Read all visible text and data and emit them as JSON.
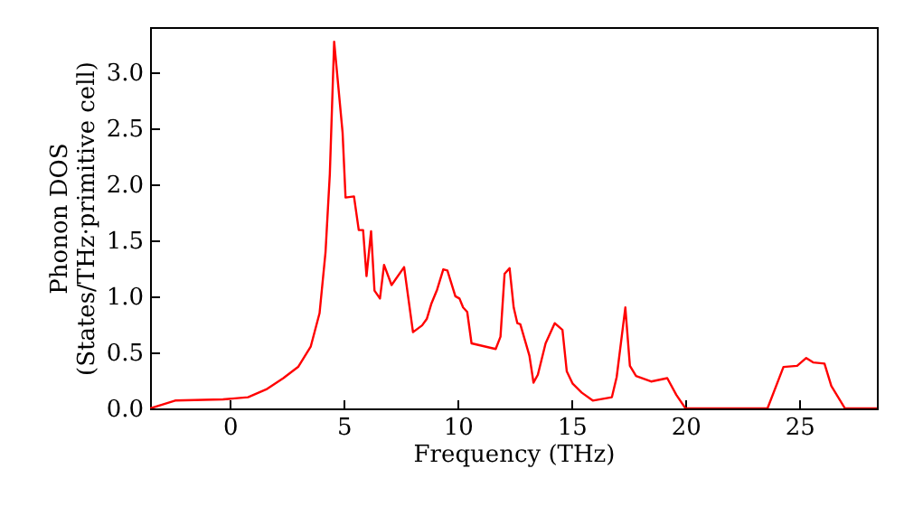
{
  "chart_data": {
    "type": "line",
    "xlabel": "Frequency (THz)",
    "ylabel": "Phonon DOS\n(States/THz·primitive cell)",
    "xlim": [
      -3.5,
      28.4
    ],
    "ylim": [
      0,
      3.4
    ],
    "xticks": [
      0,
      5,
      10,
      15,
      20,
      25
    ],
    "yticks": [
      {
        "value": 0,
        "label": "0.0"
      },
      {
        "value": 0.5,
        "label": "0.5"
      },
      {
        "value": 1,
        "label": "1.0"
      },
      {
        "value": 1.5,
        "label": "1.5"
      },
      {
        "value": 2,
        "label": "2.0"
      },
      {
        "value": 2.5,
        "label": "2.5"
      },
      {
        "value": 3,
        "label": "3.0"
      }
    ],
    "grid": false,
    "marker": "none",
    "line_style": "solid",
    "series": [
      {
        "color": "#ff0000",
        "x": [
          -3.5,
          -2.4,
          -0.3,
          0.8,
          1.6,
          2.35,
          3.0,
          3.55,
          3.94,
          4.2,
          4.39,
          4.58,
          4.95,
          5.08,
          5.45,
          5.66,
          5.85,
          6.0,
          6.2,
          6.35,
          6.59,
          6.77,
          7.1,
          7.65,
          8.04,
          8.44,
          8.65,
          8.84,
          9.1,
          9.37,
          9.55,
          9.9,
          10.08,
          10.24,
          10.42,
          10.61,
          11.67,
          11.88,
          12.06,
          12.28,
          12.46,
          12.62,
          12.75,
          13.15,
          13.33,
          13.52,
          13.86,
          14.26,
          14.6,
          14.79,
          15.05,
          15.45,
          15.93,
          16.77,
          16.98,
          17.36,
          17.56,
          17.83,
          18.49,
          19.2,
          19.6,
          20.0,
          23.6,
          24.3,
          24.9,
          25.3,
          25.6,
          26.1,
          26.4,
          27.0,
          28.4
        ],
        "values": [
          0.0,
          0.07,
          0.08,
          0.1,
          0.17,
          0.27,
          0.37,
          0.55,
          0.85,
          1.39,
          2.09,
          3.27,
          2.46,
          1.88,
          1.89,
          1.59,
          1.59,
          1.18,
          1.58,
          1.05,
          0.98,
          1.28,
          1.1,
          1.26,
          0.68,
          0.74,
          0.8,
          0.93,
          1.06,
          1.24,
          1.23,
          1.0,
          0.98,
          0.9,
          0.86,
          0.58,
          0.53,
          0.64,
          1.2,
          1.25,
          0.9,
          0.76,
          0.75,
          0.47,
          0.23,
          0.3,
          0.58,
          0.76,
          0.7,
          0.33,
          0.22,
          0.14,
          0.07,
          0.1,
          0.28,
          0.9,
          0.38,
          0.29,
          0.24,
          0.27,
          0.12,
          0.0,
          0.0,
          0.37,
          0.38,
          0.45,
          0.41,
          0.4,
          0.2,
          0.0,
          0.0
        ]
      }
    ]
  }
}
